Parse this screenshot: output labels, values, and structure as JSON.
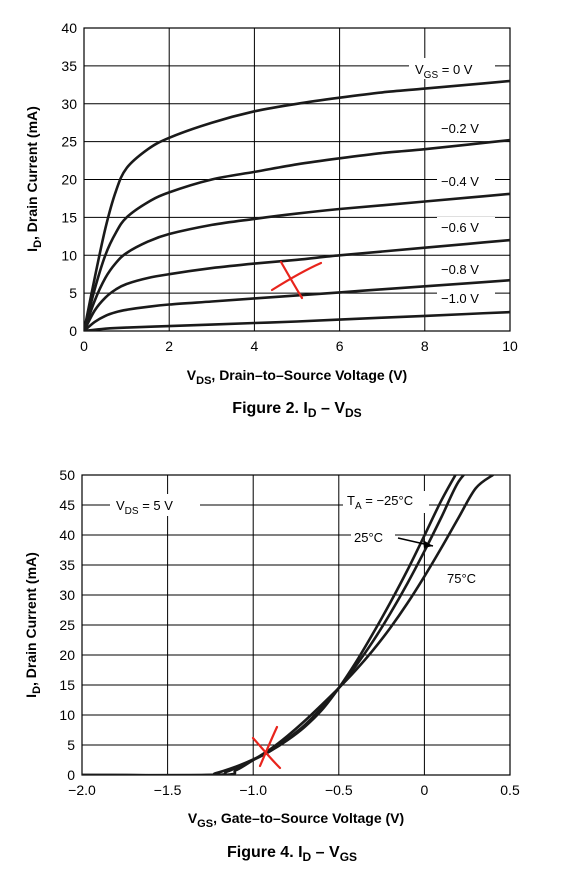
{
  "chart_data": [
    {
      "type": "line",
      "title": "",
      "caption": {
        "main": "Figure 2. I",
        "sub1": "D",
        "mid": " – V",
        "sub2": "DS"
      },
      "xlabel": {
        "pre": "V",
        "sub": "DS",
        "post": ", Drain–to–Source Voltage (V)"
      },
      "ylabel": {
        "pre": "I",
        "sub": "D",
        "post": ", Drain Current (mA)"
      },
      "xlim": [
        0,
        10
      ],
      "ylim": [
        0,
        40
      ],
      "xticks": [
        0,
        2,
        4,
        6,
        8,
        10
      ],
      "yticks": [
        0,
        5,
        10,
        15,
        20,
        25,
        30,
        35,
        40
      ],
      "grid": true,
      "series": [
        {
          "name": "V_GS = 0 V",
          "label": {
            "pre": "V",
            "sub": "GS",
            "post": " = 0 V"
          },
          "x": [
            0,
            0.25,
            0.5,
            0.75,
            1.0,
            1.5,
            2,
            3,
            4,
            5,
            6,
            7,
            8,
            9,
            10
          ],
          "y": [
            0,
            7,
            13.5,
            18.5,
            21.5,
            24,
            25.5,
            27.5,
            29,
            30,
            30.8,
            31.5,
            32,
            32.5,
            33
          ]
        },
        {
          "name": "−0.2 V",
          "label": {
            "pre": "−0.2 V",
            "sub": "",
            "post": ""
          },
          "x": [
            0,
            0.25,
            0.5,
            0.75,
            1.0,
            1.5,
            2,
            3,
            4,
            5,
            6,
            7,
            8,
            9,
            10
          ],
          "y": [
            0,
            5.5,
            10,
            13,
            15,
            17,
            18.3,
            20,
            21,
            22,
            22.8,
            23.5,
            24,
            24.6,
            25.2
          ]
        },
        {
          "name": "−0.4 V",
          "label": {
            "pre": "−0.4 V",
            "sub": "",
            "post": ""
          },
          "x": [
            0,
            0.25,
            0.5,
            0.75,
            1.0,
            1.5,
            2,
            3,
            4,
            5,
            6,
            7,
            8,
            9,
            10
          ],
          "y": [
            0,
            4,
            7,
            9,
            10.3,
            11.8,
            12.8,
            14,
            14.8,
            15.5,
            16.1,
            16.6,
            17.1,
            17.6,
            18.1
          ]
        },
        {
          "name": "−0.6 V",
          "label": {
            "pre": "−0.6 V",
            "sub": "",
            "post": ""
          },
          "x": [
            0,
            0.25,
            0.5,
            0.75,
            1.0,
            1.5,
            2,
            3,
            4,
            5,
            6,
            7,
            8,
            9,
            10
          ],
          "y": [
            0,
            2.7,
            4.4,
            5.5,
            6.2,
            7,
            7.5,
            8.3,
            8.9,
            9.4,
            10,
            10.5,
            11,
            11.5,
            12
          ]
        },
        {
          "name": "−0.8 V",
          "label": {
            "pre": "−0.8 V",
            "sub": "",
            "post": ""
          },
          "x": [
            0,
            0.25,
            0.5,
            0.75,
            1.0,
            1.5,
            2,
            3,
            4,
            5,
            6,
            7,
            8,
            9,
            10
          ],
          "y": [
            0,
            1.2,
            2,
            2.5,
            2.8,
            3.2,
            3.5,
            3.9,
            4.3,
            4.7,
            5.1,
            5.5,
            5.9,
            6.3,
            6.7
          ]
        },
        {
          "name": "−1.0 V",
          "label": {
            "pre": "−1.0 V",
            "sub": "",
            "post": ""
          },
          "x": [
            0,
            0.5,
            1,
            2,
            3,
            4,
            5,
            6,
            7,
            8,
            9,
            10
          ],
          "y": [
            0,
            0.3,
            0.45,
            0.65,
            0.85,
            1.05,
            1.25,
            1.5,
            1.75,
            2,
            2.25,
            2.5
          ]
        }
      ]
    },
    {
      "type": "line",
      "title": "",
      "caption": {
        "main": "Figure 4. I",
        "sub1": "D",
        "mid": " – V",
        "sub2": "GS"
      },
      "xlabel": {
        "pre": "V",
        "sub": "GS",
        "post": ", Gate–to–Source Voltage (V)"
      },
      "ylabel": {
        "pre": "I",
        "sub": "D",
        "post": ", Drain Current (mA)"
      },
      "xlim": [
        -2.0,
        0.5
      ],
      "ylim": [
        0,
        50
      ],
      "xticks": [
        -2.0,
        -1.5,
        -1.0,
        -0.5,
        0,
        0.5
      ],
      "xtick_labels": [
        "−2.0",
        "−1.5",
        "−1.0",
        "−0.5",
        "0",
        "0.5"
      ],
      "yticks": [
        0,
        5,
        10,
        15,
        20,
        25,
        30,
        35,
        40,
        45,
        50
      ],
      "grid": true,
      "annotation": {
        "pre": "V",
        "sub": "DS",
        "post": " = 5 V"
      },
      "series": [
        {
          "name": "T_A = −25°C",
          "label": {
            "pre": "T",
            "sub": "A",
            "post": " = −25°C"
          },
          "x": [
            -2.0,
            -1.3,
            -1.22,
            -1.1,
            -1.0,
            -0.9,
            -0.8,
            -0.7,
            -0.6,
            -0.5,
            -0.4,
            -0.3,
            -0.2,
            -0.1,
            0.0,
            0.1,
            0.2,
            0.25
          ],
          "y": [
            0,
            0,
            0.3,
            1.4,
            2.6,
            4.0,
            5.8,
            8.0,
            10.8,
            14.5,
            18.8,
            23.6,
            28.7,
            34.1,
            39.9,
            45.8,
            50.9,
            53
          ]
        },
        {
          "name": "25°C",
          "label": {
            "pre": "25°C",
            "sub": "",
            "post": ""
          },
          "x": [
            -2.0,
            -1.25,
            -1.15,
            -1.0,
            -0.9,
            -0.8,
            -0.7,
            -0.6,
            -0.5,
            -0.4,
            -0.3,
            -0.2,
            -0.1,
            0.0,
            0.1,
            0.2,
            0.3
          ],
          "y": [
            0,
            0,
            0.6,
            2.5,
            4.0,
            6.0,
            8.3,
            11.2,
            14.5,
            18.2,
            22.3,
            26.9,
            31.9,
            37.3,
            43.0,
            48.9,
            52
          ]
        },
        {
          "name": "75°C",
          "label": {
            "pre": "75°C",
            "sub": "",
            "post": ""
          },
          "x": [
            -2.0,
            -1.2,
            -1.1,
            -1.0,
            -0.9,
            -0.8,
            -0.7,
            -0.6,
            -0.5,
            -0.4,
            -0.3,
            -0.2,
            -0.1,
            0.0,
            0.1,
            0.2,
            0.3,
            0.4
          ],
          "y": [
            0,
            0,
            0.8,
            2.5,
            4.3,
            6.5,
            9.0,
            11.7,
            14.5,
            17.5,
            20.8,
            24.5,
            28.6,
            33.1,
            37.9,
            42.9,
            47.8,
            50
          ]
        }
      ]
    }
  ]
}
